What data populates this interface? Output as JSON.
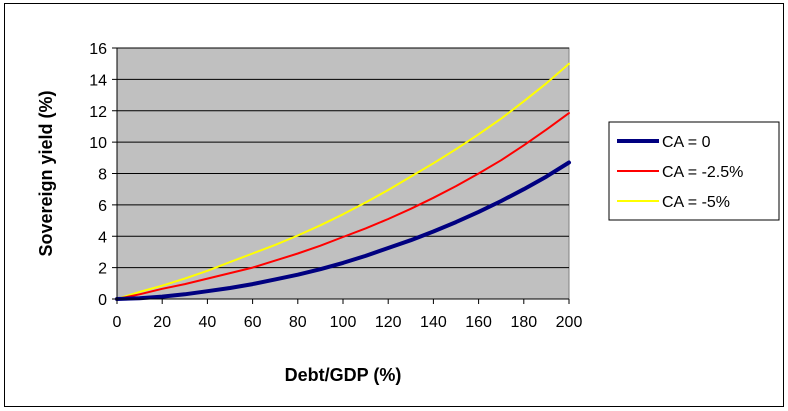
{
  "chart_data": {
    "type": "line",
    "title": "",
    "xlabel": "Debt/GDP (%)",
    "ylabel": "Sovereign yield (%)",
    "xlim": [
      0,
      200
    ],
    "ylim": [
      0,
      16
    ],
    "x_ticks": [
      "0",
      "20",
      "40",
      "60",
      "80",
      "100",
      "120",
      "140",
      "160",
      "180",
      "200"
    ],
    "y_ticks": [
      "0",
      "2",
      "4",
      "6",
      "8",
      "10",
      "12",
      "14",
      "16"
    ],
    "grid": "horizontal",
    "plot_background": "#c0c0c0",
    "legend_position": "right",
    "x": [
      0,
      10,
      20,
      30,
      40,
      50,
      60,
      70,
      80,
      90,
      100,
      110,
      120,
      130,
      140,
      150,
      160,
      170,
      180,
      190,
      200
    ],
    "series": [
      {
        "name": "CA = 0",
        "color": "#000080",
        "line_width": "thick",
        "values": [
          0,
          0.05,
          0.15,
          0.3,
          0.5,
          0.7,
          0.95,
          1.25,
          1.55,
          1.9,
          2.3,
          2.75,
          3.25,
          3.75,
          4.3,
          4.9,
          5.55,
          6.25,
          7.0,
          7.8,
          8.7
        ]
      },
      {
        "name": "CA = -2.5%",
        "color": "#ff0000",
        "line_width": "thin",
        "values": [
          0,
          0.3,
          0.65,
          0.95,
          1.3,
          1.65,
          2.0,
          2.45,
          2.9,
          3.4,
          3.95,
          4.5,
          5.1,
          5.75,
          6.45,
          7.2,
          8.0,
          8.85,
          9.8,
          10.8,
          11.85
        ]
      },
      {
        "name": "CA = -5%",
        "color": "#ffff00",
        "line_width": "thin",
        "values": [
          0,
          0.45,
          0.85,
          1.3,
          1.8,
          2.35,
          2.9,
          3.45,
          4.05,
          4.7,
          5.4,
          6.15,
          6.95,
          7.8,
          8.65,
          9.55,
          10.5,
          11.5,
          12.6,
          13.75,
          15.0
        ]
      }
    ]
  }
}
